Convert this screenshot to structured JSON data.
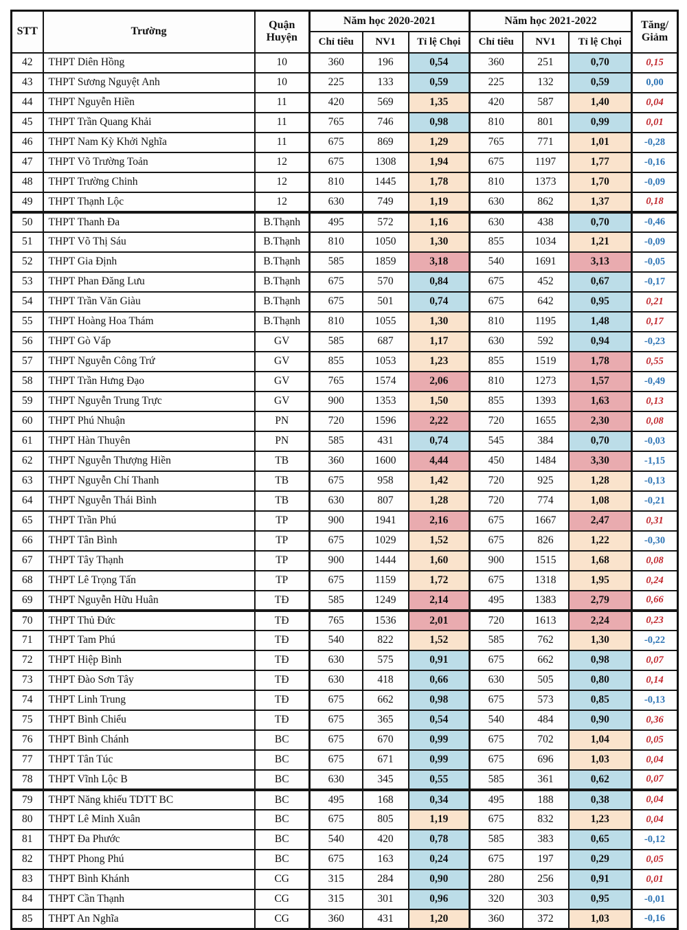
{
  "table": {
    "header": {
      "stt": "STT",
      "school": "Trường",
      "district_line1": "Quận",
      "district_line2": "Huyện",
      "year1": "Năm học 2020-2021",
      "year2": "Năm học 2021-2022",
      "quota": "Chỉ tiêu",
      "nv1": "NV1",
      "ratio": "Tỉ lệ Chọi",
      "change_line1": "Tăng/",
      "change_line2": "Giảm"
    },
    "thick_after": [
      49,
      69,
      78
    ],
    "rows": [
      {
        "stt": "42",
        "school": "THPT Diên Hồng",
        "district": "10",
        "q1": "360",
        "n1": "196",
        "r1": "0,54",
        "r1bg": "blue",
        "q2": "360",
        "n2": "251",
        "r2": "0,70",
        "r2bg": "blue",
        "chg": "0,15",
        "chgdir": "up"
      },
      {
        "stt": "43",
        "school": "THPT Sương Nguyệt Anh",
        "district": "10",
        "q1": "225",
        "n1": "133",
        "r1": "0,59",
        "r1bg": "blue",
        "q2": "225",
        "n2": "132",
        "r2": "0,59",
        "r2bg": "blue",
        "chg": "0,00",
        "chgdir": "down"
      },
      {
        "stt": "44",
        "school": "THPT Nguyễn Hiền",
        "district": "11",
        "q1": "420",
        "n1": "569",
        "r1": "1,35",
        "r1bg": "peach",
        "q2": "420",
        "n2": "587",
        "r2": "1,40",
        "r2bg": "peach",
        "chg": "0,04",
        "chgdir": "up"
      },
      {
        "stt": "45",
        "school": "THPT Trần Quang Khải",
        "district": "11",
        "q1": "765",
        "n1": "746",
        "r1": "0,98",
        "r1bg": "blue",
        "q2": "810",
        "n2": "801",
        "r2": "0,99",
        "r2bg": "blue",
        "chg": "0,01",
        "chgdir": "up"
      },
      {
        "stt": "46",
        "school": "THPT Nam Kỳ Khởi Nghĩa",
        "district": "11",
        "q1": "675",
        "n1": "869",
        "r1": "1,29",
        "r1bg": "peach",
        "q2": "765",
        "n2": "771",
        "r2": "1,01",
        "r2bg": "peach",
        "chg": "-0,28",
        "chgdir": "down"
      },
      {
        "stt": "47",
        "school": "THPT Võ Trường Toản",
        "district": "12",
        "q1": "675",
        "n1": "1308",
        "r1": "1,94",
        "r1bg": "peach",
        "q2": "675",
        "n2": "1197",
        "r2": "1,77",
        "r2bg": "peach",
        "chg": "-0,16",
        "chgdir": "down"
      },
      {
        "stt": "48",
        "school": "THPT Trường Chinh",
        "district": "12",
        "q1": "810",
        "n1": "1445",
        "r1": "1,78",
        "r1bg": "peach",
        "q2": "810",
        "n2": "1373",
        "r2": "1,70",
        "r2bg": "peach",
        "chg": "-0,09",
        "chgdir": "down"
      },
      {
        "stt": "49",
        "school": "THPT Thạnh Lộc",
        "district": "12",
        "q1": "630",
        "n1": "749",
        "r1": "1,19",
        "r1bg": "peach",
        "q2": "630",
        "n2": "862",
        "r2": "1,37",
        "r2bg": "peach",
        "chg": "0,18",
        "chgdir": "up"
      },
      {
        "stt": "50",
        "school": "THPT Thanh Đa",
        "district": "B.Thạnh",
        "q1": "495",
        "n1": "572",
        "r1": "1,16",
        "r1bg": "peach",
        "q2": "630",
        "n2": "438",
        "r2": "0,70",
        "r2bg": "blue",
        "chg": "-0,46",
        "chgdir": "down"
      },
      {
        "stt": "51",
        "school": "THPT Võ Thị Sáu",
        "district": "B.Thạnh",
        "q1": "810",
        "n1": "1050",
        "r1": "1,30",
        "r1bg": "peach",
        "q2": "855",
        "n2": "1034",
        "r2": "1,21",
        "r2bg": "peach",
        "chg": "-0,09",
        "chgdir": "down"
      },
      {
        "stt": "52",
        "school": "THPT Gia Định",
        "district": "B.Thạnh",
        "q1": "585",
        "n1": "1859",
        "r1": "3,18",
        "r1bg": "pink",
        "q2": "540",
        "n2": "1691",
        "r2": "3,13",
        "r2bg": "pink",
        "chg": "-0,05",
        "chgdir": "down"
      },
      {
        "stt": "53",
        "school": "THPT Phan Đăng Lưu",
        "district": "B.Thạnh",
        "q1": "675",
        "n1": "570",
        "r1": "0,84",
        "r1bg": "blue",
        "q2": "675",
        "n2": "452",
        "r2": "0,67",
        "r2bg": "blue",
        "chg": "-0,17",
        "chgdir": "down"
      },
      {
        "stt": "54",
        "school": "THPT Trần Văn Giàu",
        "district": "B.Thạnh",
        "q1": "675",
        "n1": "501",
        "r1": "0,74",
        "r1bg": "blue",
        "q2": "675",
        "n2": "642",
        "r2": "0,95",
        "r2bg": "blue",
        "chg": "0,21",
        "chgdir": "up"
      },
      {
        "stt": "55",
        "school": "THPT Hoàng Hoa Thám",
        "district": "B.Thạnh",
        "q1": "810",
        "n1": "1055",
        "r1": "1,30",
        "r1bg": "peach",
        "q2": "810",
        "n2": "1195",
        "r2": "1,48",
        "r2bg": "blue",
        "chg": "0,17",
        "chgdir": "up"
      },
      {
        "stt": "56",
        "school": "THPT Gò Vấp",
        "district": "GV",
        "q1": "585",
        "n1": "687",
        "r1": "1,17",
        "r1bg": "peach",
        "q2": "630",
        "n2": "592",
        "r2": "0,94",
        "r2bg": "blue",
        "chg": "-0,23",
        "chgdir": "down"
      },
      {
        "stt": "57",
        "school": "THPT Nguyễn Công Trứ",
        "district": "GV",
        "q1": "855",
        "n1": "1053",
        "r1": "1,23",
        "r1bg": "peach",
        "q2": "855",
        "n2": "1519",
        "r2": "1,78",
        "r2bg": "pink",
        "chg": "0,55",
        "chgdir": "up"
      },
      {
        "stt": "58",
        "school": "THPT Trần Hưng Đạo",
        "district": "GV",
        "q1": "765",
        "n1": "1574",
        "r1": "2,06",
        "r1bg": "pink",
        "q2": "810",
        "n2": "1273",
        "r2": "1,57",
        "r2bg": "pink",
        "chg": "-0,49",
        "chgdir": "down"
      },
      {
        "stt": "59",
        "school": "THPT Nguyễn Trung Trực",
        "district": "GV",
        "q1": "900",
        "n1": "1353",
        "r1": "1,50",
        "r1bg": "peach",
        "q2": "855",
        "n2": "1393",
        "r2": "1,63",
        "r2bg": "pink",
        "chg": "0,13",
        "chgdir": "up"
      },
      {
        "stt": "60",
        "school": "THPT Phú Nhuận",
        "district": "PN",
        "q1": "720",
        "n1": "1596",
        "r1": "2,22",
        "r1bg": "pink",
        "q2": "720",
        "n2": "1655",
        "r2": "2,30",
        "r2bg": "pink",
        "chg": "0,08",
        "chgdir": "up"
      },
      {
        "stt": "61",
        "school": "THPT Hàn Thuyên",
        "district": "PN",
        "q1": "585",
        "n1": "431",
        "r1": "0,74",
        "r1bg": "blue",
        "q2": "545",
        "n2": "384",
        "r2": "0,70",
        "r2bg": "blue",
        "chg": "-0,03",
        "chgdir": "down"
      },
      {
        "stt": "62",
        "school": "THPT Nguyễn Thượng Hiền",
        "district": "TB",
        "q1": "360",
        "n1": "1600",
        "r1": "4,44",
        "r1bg": "pink",
        "q2": "450",
        "n2": "1484",
        "r2": "3,30",
        "r2bg": "pink",
        "chg": "-1,15",
        "chgdir": "down"
      },
      {
        "stt": "63",
        "school": "THPT Nguyễn Chí Thanh",
        "district": "TB",
        "q1": "675",
        "n1": "958",
        "r1": "1,42",
        "r1bg": "peach",
        "q2": "720",
        "n2": "925",
        "r2": "1,28",
        "r2bg": "peach",
        "chg": "-0,13",
        "chgdir": "down"
      },
      {
        "stt": "64",
        "school": "THPT Nguyễn Thái Bình",
        "district": "TB",
        "q1": "630",
        "n1": "807",
        "r1": "1,28",
        "r1bg": "peach",
        "q2": "720",
        "n2": "774",
        "r2": "1,08",
        "r2bg": "peach",
        "chg": "-0,21",
        "chgdir": "down"
      },
      {
        "stt": "65",
        "school": "THPT Trần Phú",
        "district": "TP",
        "q1": "900",
        "n1": "1941",
        "r1": "2,16",
        "r1bg": "pink",
        "q2": "675",
        "n2": "1667",
        "r2": "2,47",
        "r2bg": "pink",
        "chg": "0,31",
        "chgdir": "up"
      },
      {
        "stt": "66",
        "school": "THPT Tân Bình",
        "district": "TP",
        "q1": "675",
        "n1": "1029",
        "r1": "1,52",
        "r1bg": "peach",
        "q2": "675",
        "n2": "826",
        "r2": "1,22",
        "r2bg": "peach",
        "chg": "-0,30",
        "chgdir": "down"
      },
      {
        "stt": "67",
        "school": "THPT Tây Thạnh",
        "district": "TP",
        "q1": "900",
        "n1": "1444",
        "r1": "1,60",
        "r1bg": "peach",
        "q2": "900",
        "n2": "1515",
        "r2": "1,68",
        "r2bg": "peach",
        "chg": "0,08",
        "chgdir": "up"
      },
      {
        "stt": "68",
        "school": "THPT Lê Trọng Tấn",
        "district": "TP",
        "q1": "675",
        "n1": "1159",
        "r1": "1,72",
        "r1bg": "peach",
        "q2": "675",
        "n2": "1318",
        "r2": "1,95",
        "r2bg": "peach",
        "chg": "0,24",
        "chgdir": "up"
      },
      {
        "stt": "69",
        "school": "THPT Nguyễn Hữu Huân",
        "district": "TĐ",
        "q1": "585",
        "n1": "1249",
        "r1": "2,14",
        "r1bg": "pink",
        "q2": "495",
        "n2": "1383",
        "r2": "2,79",
        "r2bg": "pink",
        "chg": "0,66",
        "chgdir": "up"
      },
      {
        "stt": "70",
        "school": "THPT Thủ Đức",
        "district": "TĐ",
        "q1": "765",
        "n1": "1536",
        "r1": "2,01",
        "r1bg": "pink",
        "q2": "720",
        "n2": "1613",
        "r2": "2,24",
        "r2bg": "pink",
        "chg": "0,23",
        "chgdir": "up"
      },
      {
        "stt": "71",
        "school": "THPT Tam Phú",
        "district": "TĐ",
        "q1": "540",
        "n1": "822",
        "r1": "1,52",
        "r1bg": "peach",
        "q2": "585",
        "n2": "762",
        "r2": "1,30",
        "r2bg": "peach",
        "chg": "-0,22",
        "chgdir": "down"
      },
      {
        "stt": "72",
        "school": "THPT Hiệp Bình",
        "district": "TĐ",
        "q1": "630",
        "n1": "575",
        "r1": "0,91",
        "r1bg": "blue",
        "q2": "675",
        "n2": "662",
        "r2": "0,98",
        "r2bg": "blue",
        "chg": "0,07",
        "chgdir": "up"
      },
      {
        "stt": "73",
        "school": "THPT Đào Sơn Tây",
        "district": "TĐ",
        "q1": "630",
        "n1": "418",
        "r1": "0,66",
        "r1bg": "blue",
        "q2": "630",
        "n2": "505",
        "r2": "0,80",
        "r2bg": "blue",
        "chg": "0,14",
        "chgdir": "up"
      },
      {
        "stt": "74",
        "school": "THPT Linh Trung",
        "district": "TĐ",
        "q1": "675",
        "n1": "662",
        "r1": "0,98",
        "r1bg": "blue",
        "q2": "675",
        "n2": "573",
        "r2": "0,85",
        "r2bg": "blue",
        "chg": "-0,13",
        "chgdir": "down"
      },
      {
        "stt": "75",
        "school": "THPT Bình Chiểu",
        "district": "TĐ",
        "q1": "675",
        "n1": "365",
        "r1": "0,54",
        "r1bg": "blue",
        "q2": "540",
        "n2": "484",
        "r2": "0,90",
        "r2bg": "blue",
        "chg": "0,36",
        "chgdir": "up"
      },
      {
        "stt": "76",
        "school": "THPT Bình Chánh",
        "district": "BC",
        "q1": "675",
        "n1": "670",
        "r1": "0,99",
        "r1bg": "blue",
        "q2": "675",
        "n2": "702",
        "r2": "1,04",
        "r2bg": "peach",
        "chg": "0,05",
        "chgdir": "up"
      },
      {
        "stt": "77",
        "school": "THPT Tân Túc",
        "district": "BC",
        "q1": "675",
        "n1": "671",
        "r1": "0,99",
        "r1bg": "blue",
        "q2": "675",
        "n2": "696",
        "r2": "1,03",
        "r2bg": "peach",
        "chg": "0,04",
        "chgdir": "up"
      },
      {
        "stt": "78",
        "school": "THPT Vĩnh Lộc B",
        "district": "BC",
        "q1": "630",
        "n1": "345",
        "r1": "0,55",
        "r1bg": "blue",
        "q2": "585",
        "n2": "361",
        "r2": "0,62",
        "r2bg": "blue",
        "chg": "0,07",
        "chgdir": "up"
      },
      {
        "stt": "79",
        "school": "THPT Năng khiếu  TDTT BC",
        "district": "BC",
        "q1": "495",
        "n1": "168",
        "r1": "0,34",
        "r1bg": "blue",
        "q2": "495",
        "n2": "188",
        "r2": "0,38",
        "r2bg": "blue",
        "chg": "0,04",
        "chgdir": "up"
      },
      {
        "stt": "80",
        "school": "THPT Lê Minh Xuân",
        "district": "BC",
        "q1": "675",
        "n1": "805",
        "r1": "1,19",
        "r1bg": "peach",
        "q2": "675",
        "n2": "832",
        "r2": "1,23",
        "r2bg": "peach",
        "chg": "0,04",
        "chgdir": "up"
      },
      {
        "stt": "81",
        "school": "THPT Đa Phước",
        "district": "BC",
        "q1": "540",
        "n1": "420",
        "r1": "0,78",
        "r1bg": "blue",
        "q2": "585",
        "n2": "383",
        "r2": "0,65",
        "r2bg": "blue",
        "chg": "-0,12",
        "chgdir": "down"
      },
      {
        "stt": "82",
        "school": "THPT Phong Phú",
        "district": "BC",
        "q1": "675",
        "n1": "163",
        "r1": "0,24",
        "r1bg": "blue",
        "q2": "675",
        "n2": "197",
        "r2": "0,29",
        "r2bg": "blue",
        "chg": "0,05",
        "chgdir": "up"
      },
      {
        "stt": "83",
        "school": "THPT Bình Khánh",
        "district": "CG",
        "q1": "315",
        "n1": "284",
        "r1": "0,90",
        "r1bg": "blue",
        "q2": "280",
        "n2": "256",
        "r2": "0,91",
        "r2bg": "blue",
        "chg": "0,01",
        "chgdir": "up"
      },
      {
        "stt": "84",
        "school": "THPT Cần Thạnh",
        "district": "CG",
        "q1": "315",
        "n1": "301",
        "r1": "0,96",
        "r1bg": "blue",
        "q2": "320",
        "n2": "303",
        "r2": "0,95",
        "r2bg": "blue",
        "chg": "-0,01",
        "chgdir": "down"
      },
      {
        "stt": "85",
        "school": "THPT An Nghĩa",
        "district": "CG",
        "q1": "360",
        "n1": "431",
        "r1": "1,20",
        "r1bg": "peach",
        "q2": "360",
        "n2": "372",
        "r2": "1,03",
        "r2bg": "peach",
        "chg": "-0,16",
        "chgdir": "down"
      }
    ]
  },
  "colors": {
    "ratio_bg": {
      "blue": "#bcdde8",
      "peach": "#fae3cc",
      "pink": "#e9abaf",
      "white": "transparent"
    },
    "change_up": "#c1272d",
    "change_down": "#2e75b6",
    "border": "#161616"
  }
}
